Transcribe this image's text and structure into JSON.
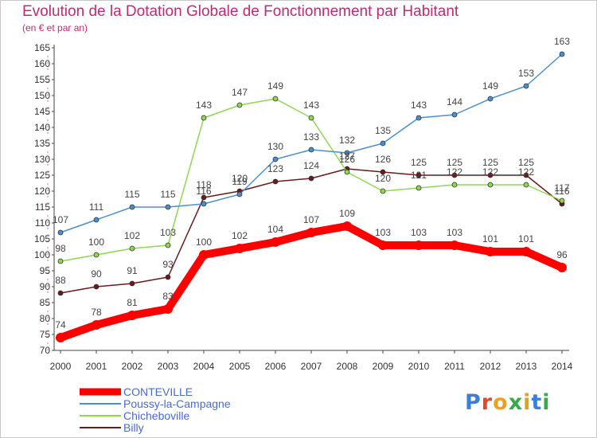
{
  "header": {
    "title": "Evolution de la Dotation Globale de Fonctionnement par Habitant",
    "subtitle": "(en € et par an)"
  },
  "brand": {
    "logo_text": "Proxiti"
  },
  "chart_data": {
    "type": "line",
    "title": "Evolution de la Dotation Globale de Fonctionnement par Habitant",
    "subtitle": "(en € et par an)",
    "xlabel": "",
    "ylabel": "",
    "x": [
      2000,
      2001,
      2002,
      2003,
      2004,
      2005,
      2006,
      2007,
      2008,
      2009,
      2010,
      2011,
      2012,
      2013,
      2014
    ],
    "ylim": [
      70,
      165
    ],
    "ytick_step": 5,
    "grid": false,
    "legend_position": "bottom-left",
    "series": [
      {
        "name": "CONTEVILLE",
        "color": "#ff0000",
        "values": [
          74,
          78,
          81,
          83,
          100,
          102,
          104,
          107,
          109,
          103,
          103,
          103,
          101,
          101,
          96
        ]
      },
      {
        "name": "Poussy-la-Campagne",
        "color": "#4a90d0",
        "values": [
          107,
          111,
          115,
          115,
          116,
          119,
          130,
          133,
          132,
          135,
          143,
          144,
          149,
          153,
          163
        ]
      },
      {
        "name": "Chicheboville",
        "color": "#8ed850",
        "values": [
          98,
          100,
          102,
          103,
          143,
          147,
          149,
          143,
          126,
          120,
          121,
          122,
          122,
          122,
          117
        ]
      },
      {
        "name": "Billy",
        "color": "#6a1a1a",
        "values": [
          88,
          90,
          91,
          93,
          118,
          120,
          123,
          124,
          127,
          126,
          125,
          125,
          125,
          125,
          116
        ]
      }
    ]
  }
}
